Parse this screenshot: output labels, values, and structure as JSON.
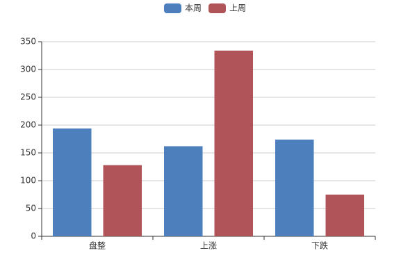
{
  "chart_data": {
    "type": "bar",
    "categories": [
      "盘整",
      "上涨",
      "下跌"
    ],
    "series": [
      {
        "name": "本周",
        "color": "#4e7fbd",
        "values": [
          194,
          162,
          174
        ]
      },
      {
        "name": "上周",
        "color": "#b0545a",
        "values": [
          128,
          334,
          75
        ]
      }
    ],
    "ylim": [
      0,
      350
    ],
    "yticks": [
      0,
      50,
      100,
      150,
      200,
      250,
      300,
      350
    ],
    "grid": true,
    "legend": "top"
  }
}
